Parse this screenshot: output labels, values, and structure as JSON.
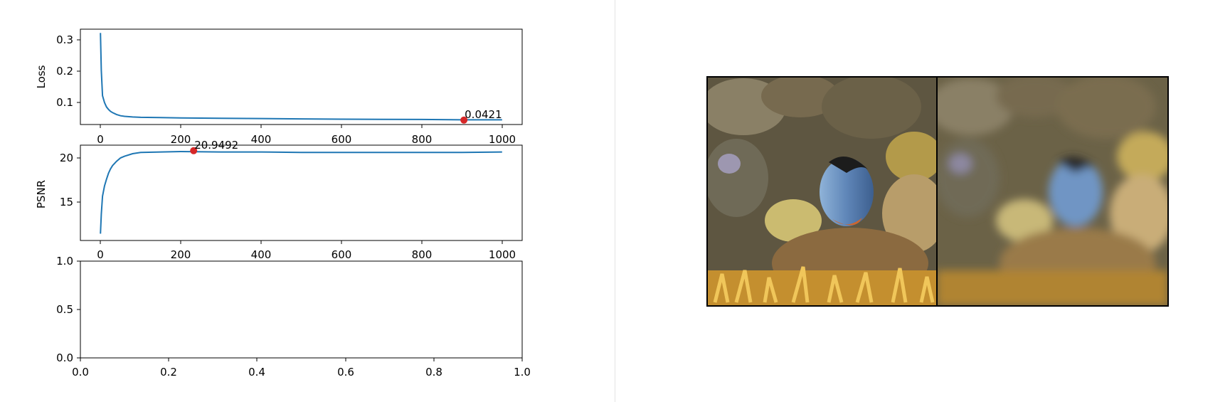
{
  "chart_data": [
    {
      "type": "line",
      "ylabel": "Loss",
      "xlim": [
        -50,
        1050
      ],
      "ylim": [
        0.028,
        0.332
      ],
      "xticks": [
        "0",
        "200",
        "400",
        "600",
        "800",
        "1000"
      ],
      "yticks": [
        "0.1",
        "0.2",
        "0.3"
      ],
      "series": [
        {
          "color": "#1f77b4",
          "x": [
            0,
            2,
            5,
            10,
            15,
            20,
            25,
            30,
            40,
            50,
            60,
            80,
            100,
            150,
            200,
            300,
            400,
            500,
            600,
            700,
            800,
            900,
            1000
          ],
          "y": [
            0.32,
            0.2,
            0.12,
            0.098,
            0.084,
            0.076,
            0.07,
            0.066,
            0.06,
            0.056,
            0.054,
            0.052,
            0.051,
            0.05,
            0.049,
            0.048,
            0.047,
            0.046,
            0.045,
            0.0445,
            0.044,
            0.043,
            0.043
          ]
        }
      ],
      "highlight": {
        "x": 905,
        "y": 0.0421,
        "label": "0.0421",
        "color": "#d62728"
      }
    },
    {
      "type": "line",
      "ylabel": "PSNR",
      "xlim": [
        -50,
        1050
      ],
      "ylim": [
        10.4,
        21.6
      ],
      "xticks": [
        "0",
        "200",
        "400",
        "600",
        "800",
        "1000"
      ],
      "yticks": [
        "15",
        "20"
      ],
      "series": [
        {
          "color": "#1f77b4",
          "x": [
            0,
            2,
            5,
            10,
            15,
            20,
            25,
            30,
            40,
            50,
            60,
            80,
            100,
            150,
            200,
            300,
            400,
            500,
            600,
            700,
            800,
            900,
            1000
          ],
          "y": [
            11.2,
            13.5,
            15.6,
            16.8,
            17.6,
            18.3,
            18.8,
            19.2,
            19.7,
            20.1,
            20.3,
            20.6,
            20.75,
            20.8,
            20.85,
            20.8,
            20.8,
            20.75,
            20.75,
            20.75,
            20.75,
            20.75,
            20.8
          ]
        }
      ],
      "highlight": {
        "x": 232,
        "y": 20.9492,
        "label": "20.9492",
        "color": "#d62728"
      }
    },
    {
      "type": "line",
      "xlim": [
        0,
        1
      ],
      "ylim": [
        0,
        1
      ],
      "xticks": [
        "0.0",
        "0.2",
        "0.4",
        "0.6",
        "0.8",
        "1.0"
      ],
      "yticks": [
        "0.0",
        "0.5",
        "1.0"
      ],
      "series": []
    }
  ]
}
